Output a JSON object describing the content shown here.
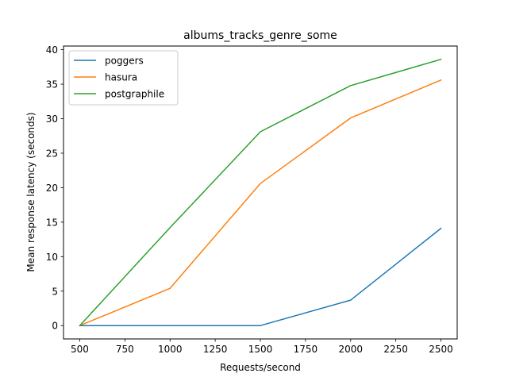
{
  "chart_data": {
    "type": "line",
    "title": "albums_tracks_genre_some",
    "xlabel": "Requests/second",
    "ylabel": "Mean response latency (seconds)",
    "x": [
      500,
      1000,
      1500,
      2000,
      2500
    ],
    "xlim": [
      410,
      2590
    ],
    "ylim": [
      -1.93,
      40.53
    ],
    "xticks": [
      500,
      750,
      1000,
      1250,
      1500,
      1750,
      2000,
      2250,
      2500
    ],
    "yticks": [
      0,
      5,
      10,
      15,
      20,
      25,
      30,
      35,
      40
    ],
    "grid": false,
    "legend_position": "upper-left",
    "series": [
      {
        "name": "poggers",
        "color": "#1f77b4",
        "values": [
          0.0,
          0.0,
          0.0,
          3.7,
          14.1
        ]
      },
      {
        "name": "hasura",
        "color": "#ff7f0e",
        "values": [
          0.0,
          5.4,
          20.6,
          30.1,
          35.6
        ]
      },
      {
        "name": "postgraphile",
        "color": "#2ca02c",
        "values": [
          0.0,
          14.2,
          28.1,
          34.8,
          38.6
        ]
      }
    ]
  }
}
